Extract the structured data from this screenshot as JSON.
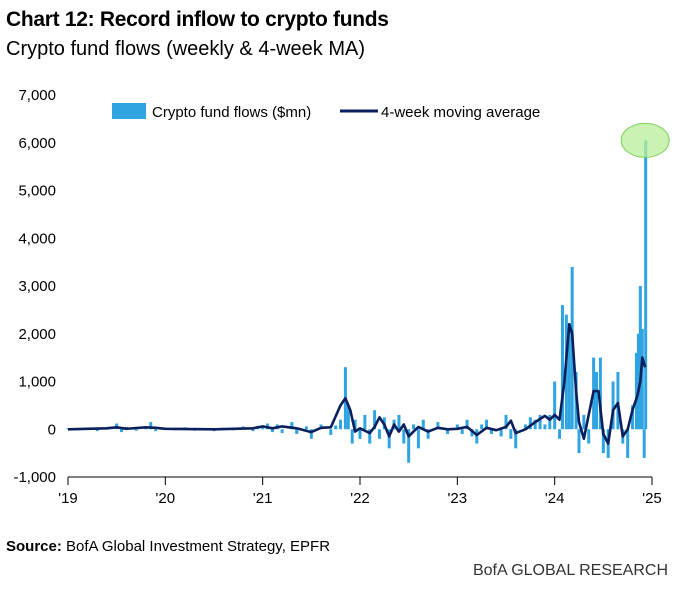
{
  "title": "Chart 12: Record inflow to crypto funds",
  "subtitle": "Crypto fund flows (weekly & 4-week MA)",
  "source_label": "Source:",
  "source_text": " BofA Global Investment Strategy, EPFR",
  "brand": "BofA GLOBAL RESEARCH",
  "colors": {
    "bars": "#2fa4e0",
    "ma_line": "#0b1f5c",
    "highlight": "#b8ef9a",
    "highlight_edge": "#7fcf5f"
  },
  "chart_data": {
    "type": "bar",
    "xlim": [
      2019.0,
      2025.0
    ],
    "ylim": [
      -1000,
      7000
    ],
    "yticks": [
      -1000,
      0,
      1000,
      2000,
      3000,
      4000,
      5000,
      6000,
      7000
    ],
    "ytick_labels": [
      "-1,000",
      "0",
      "1,000",
      "2,000",
      "3,000",
      "4,000",
      "5,000",
      "6,000",
      "7,000"
    ],
    "xticks": [
      2019,
      2020,
      2021,
      2022,
      2023,
      2024,
      2025
    ],
    "xtick_labels": [
      "'19",
      "'20",
      "'21",
      "'22",
      "'23",
      "'24",
      "'25"
    ],
    "legend_position": "top",
    "highlight": {
      "x": 2024.93,
      "y": 6050,
      "note": "record inflow marker"
    },
    "series": [
      {
        "name": "Crypto fund flows ($mn)",
        "type": "bar",
        "points": [
          [
            2019.0,
            20
          ],
          [
            2019.1,
            -20
          ],
          [
            2019.2,
            30
          ],
          [
            2019.3,
            -40
          ],
          [
            2019.4,
            40
          ],
          [
            2019.5,
            120
          ],
          [
            2019.55,
            -60
          ],
          [
            2019.6,
            50
          ],
          [
            2019.7,
            -30
          ],
          [
            2019.8,
            20
          ],
          [
            2019.85,
            150
          ],
          [
            2019.9,
            -40
          ],
          [
            2020.0,
            30
          ],
          [
            2020.1,
            -20
          ],
          [
            2020.2,
            40
          ],
          [
            2020.3,
            -30
          ],
          [
            2020.4,
            20
          ],
          [
            2020.5,
            -40
          ],
          [
            2020.6,
            30
          ],
          [
            2020.7,
            -20
          ],
          [
            2020.8,
            60
          ],
          [
            2020.9,
            -40
          ],
          [
            2020.95,
            70
          ],
          [
            2021.0,
            80
          ],
          [
            2021.05,
            120
          ],
          [
            2021.1,
            -60
          ],
          [
            2021.15,
            100
          ],
          [
            2021.2,
            -80
          ],
          [
            2021.3,
            150
          ],
          [
            2021.35,
            -100
          ],
          [
            2021.45,
            60
          ],
          [
            2021.5,
            -200
          ],
          [
            2021.6,
            100
          ],
          [
            2021.7,
            -120
          ],
          [
            2021.75,
            80
          ],
          [
            2021.8,
            200
          ],
          [
            2021.85,
            1300
          ],
          [
            2021.88,
            500
          ],
          [
            2021.92,
            -300
          ],
          [
            2021.95,
            200
          ],
          [
            2022.0,
            -200
          ],
          [
            2022.05,
            300
          ],
          [
            2022.1,
            -300
          ],
          [
            2022.15,
            400
          ],
          [
            2022.2,
            -200
          ],
          [
            2022.25,
            250
          ],
          [
            2022.3,
            -400
          ],
          [
            2022.35,
            200
          ],
          [
            2022.4,
            300
          ],
          [
            2022.45,
            -300
          ],
          [
            2022.5,
            -700
          ],
          [
            2022.55,
            100
          ],
          [
            2022.6,
            -400
          ],
          [
            2022.65,
            200
          ],
          [
            2022.7,
            -200
          ],
          [
            2022.8,
            150
          ],
          [
            2022.9,
            -100
          ],
          [
            2023.0,
            100
          ],
          [
            2023.05,
            -100
          ],
          [
            2023.1,
            200
          ],
          [
            2023.15,
            -150
          ],
          [
            2023.2,
            -300
          ],
          [
            2023.25,
            100
          ],
          [
            2023.3,
            200
          ],
          [
            2023.35,
            -100
          ],
          [
            2023.45,
            -150
          ],
          [
            2023.5,
            300
          ],
          [
            2023.55,
            -200
          ],
          [
            2023.6,
            -400
          ],
          [
            2023.7,
            100
          ],
          [
            2023.75,
            250
          ],
          [
            2023.8,
            200
          ],
          [
            2023.85,
            300
          ],
          [
            2023.9,
            100
          ],
          [
            2023.95,
            300
          ],
          [
            2024.0,
            1000
          ],
          [
            2024.05,
            -200
          ],
          [
            2024.08,
            2600
          ],
          [
            2024.12,
            2400
          ],
          [
            2024.15,
            2200
          ],
          [
            2024.18,
            3400
          ],
          [
            2024.22,
            1200
          ],
          [
            2024.25,
            -500
          ],
          [
            2024.3,
            300
          ],
          [
            2024.35,
            -300
          ],
          [
            2024.4,
            1500
          ],
          [
            2024.43,
            1200
          ],
          [
            2024.47,
            1500
          ],
          [
            2024.5,
            -500
          ],
          [
            2024.55,
            -600
          ],
          [
            2024.6,
            1000
          ],
          [
            2024.65,
            1200
          ],
          [
            2024.7,
            -300
          ],
          [
            2024.75,
            -600
          ],
          [
            2024.8,
            500
          ],
          [
            2024.84,
            1600
          ],
          [
            2024.86,
            2000
          ],
          [
            2024.88,
            3000
          ],
          [
            2024.9,
            2100
          ],
          [
            2024.92,
            -600
          ],
          [
            2024.935,
            6050
          ]
        ]
      },
      {
        "name": "4-week moving average",
        "type": "line",
        "points": [
          [
            2019.0,
            0
          ],
          [
            2019.2,
            10
          ],
          [
            2019.4,
            20
          ],
          [
            2019.5,
            40
          ],
          [
            2019.6,
            10
          ],
          [
            2019.8,
            40
          ],
          [
            2019.9,
            30
          ],
          [
            2020.0,
            10
          ],
          [
            2020.5,
            0
          ],
          [
            2020.9,
            20
          ],
          [
            2021.0,
            60
          ],
          [
            2021.1,
            20
          ],
          [
            2021.2,
            60
          ],
          [
            2021.35,
            20
          ],
          [
            2021.5,
            -60
          ],
          [
            2021.6,
            30
          ],
          [
            2021.7,
            40
          ],
          [
            2021.8,
            500
          ],
          [
            2021.85,
            650
          ],
          [
            2021.9,
            400
          ],
          [
            2021.95,
            -50
          ],
          [
            2022.0,
            20
          ],
          [
            2022.1,
            -80
          ],
          [
            2022.15,
            50
          ],
          [
            2022.2,
            250
          ],
          [
            2022.25,
            100
          ],
          [
            2022.3,
            -150
          ],
          [
            2022.35,
            100
          ],
          [
            2022.4,
            -50
          ],
          [
            2022.45,
            100
          ],
          [
            2022.5,
            -150
          ],
          [
            2022.55,
            -50
          ],
          [
            2022.6,
            50
          ],
          [
            2022.7,
            -50
          ],
          [
            2022.8,
            30
          ],
          [
            2022.9,
            0
          ],
          [
            2023.0,
            10
          ],
          [
            2023.1,
            50
          ],
          [
            2023.2,
            -120
          ],
          [
            2023.3,
            30
          ],
          [
            2023.4,
            -20
          ],
          [
            2023.5,
            50
          ],
          [
            2023.55,
            180
          ],
          [
            2023.6,
            -80
          ],
          [
            2023.7,
            0
          ],
          [
            2023.8,
            150
          ],
          [
            2023.9,
            280
          ],
          [
            2023.95,
            200
          ],
          [
            2024.0,
            300
          ],
          [
            2024.05,
            200
          ],
          [
            2024.1,
            1000
          ],
          [
            2024.15,
            2200
          ],
          [
            2024.18,
            2000
          ],
          [
            2024.22,
            800
          ],
          [
            2024.25,
            150
          ],
          [
            2024.3,
            -200
          ],
          [
            2024.35,
            300
          ],
          [
            2024.4,
            800
          ],
          [
            2024.45,
            800
          ],
          [
            2024.5,
            -100
          ],
          [
            2024.55,
            -300
          ],
          [
            2024.6,
            400
          ],
          [
            2024.65,
            550
          ],
          [
            2024.7,
            -150
          ],
          [
            2024.75,
            0
          ],
          [
            2024.8,
            400
          ],
          [
            2024.85,
            700
          ],
          [
            2024.88,
            1000
          ],
          [
            2024.9,
            1500
          ],
          [
            2024.93,
            1300
          ]
        ]
      }
    ]
  }
}
